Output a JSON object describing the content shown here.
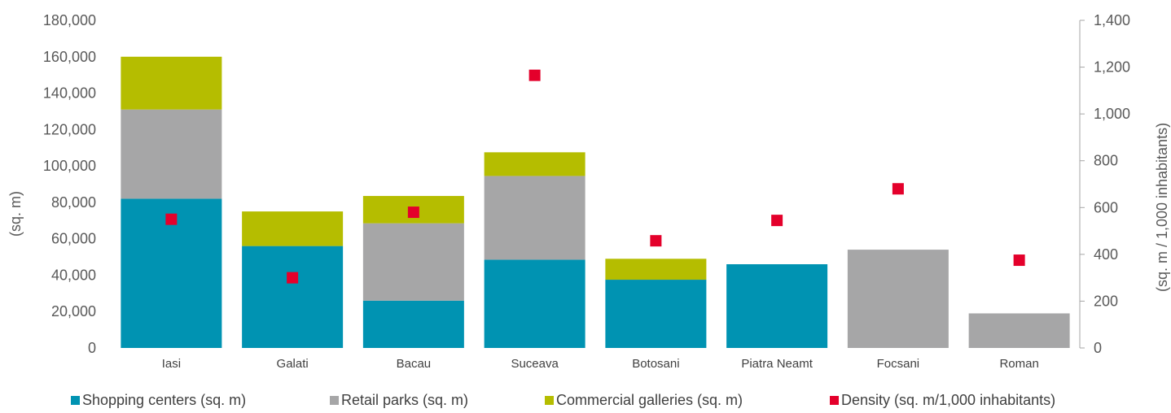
{
  "chart_data": {
    "type": "bar",
    "stacked": true,
    "categories": [
      "Iasi",
      "Galati",
      "Bacau",
      "Suceava",
      "Botosani",
      "Piatra Neamt",
      "Focsani",
      "Roman"
    ],
    "series": [
      {
        "name": "Shopping centers (sq. m)",
        "color": "#0093b2",
        "axis": "left",
        "values": [
          82000,
          56000,
          26000,
          48500,
          37500,
          46000,
          0,
          0
        ]
      },
      {
        "name": "Retail parks (sq. m)",
        "color": "#a6a6a7",
        "axis": "left",
        "values": [
          49000,
          0,
          42500,
          46000,
          0,
          0,
          54000,
          19000
        ]
      },
      {
        "name": "Commercial galleries (sq. m)",
        "color": "#b5bd00",
        "axis": "left",
        "values": [
          29000,
          19000,
          15000,
          13000,
          11500,
          0,
          0,
          0
        ]
      },
      {
        "name": "Density (sq. m/1,000 inhabitants)",
        "color": "#e4002b",
        "axis": "right",
        "type": "scatter",
        "values": [
          550,
          300,
          580,
          1165,
          458,
          545,
          680,
          375
        ]
      }
    ],
    "ylabel": "(sq. m)",
    "ylabel_right": "(sq. m / 1,000 inhabitants)",
    "ylim": [
      0,
      180000
    ],
    "ylim_right": [
      0,
      1400
    ],
    "yticks": [
      "0",
      "20,000",
      "40,000",
      "60,000",
      "80,000",
      "100,000",
      "120,000",
      "140,000",
      "160,000",
      "180,000"
    ],
    "yticks_right": [
      "0",
      "200",
      "400",
      "600",
      "800",
      "1,000",
      "1,200",
      "1,400"
    ],
    "grid": false,
    "legend_position": "bottom"
  }
}
